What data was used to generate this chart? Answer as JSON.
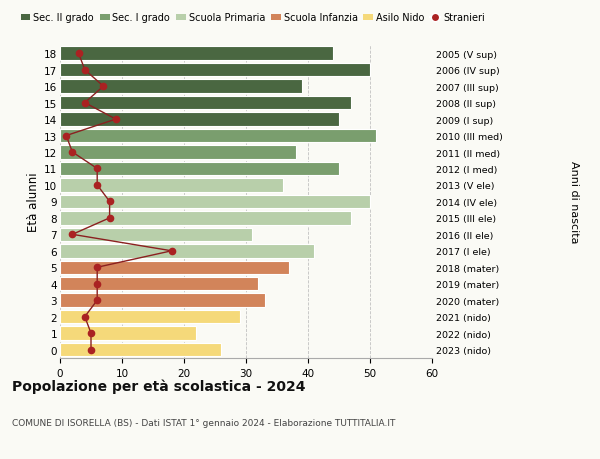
{
  "ages": [
    18,
    17,
    16,
    15,
    14,
    13,
    12,
    11,
    10,
    9,
    8,
    7,
    6,
    5,
    4,
    3,
    2,
    1,
    0
  ],
  "bar_values": [
    44,
    50,
    39,
    47,
    45,
    51,
    38,
    45,
    36,
    50,
    47,
    31,
    41,
    37,
    32,
    33,
    29,
    22,
    26
  ],
  "bar_colors": [
    "#4a6741",
    "#4a6741",
    "#4a6741",
    "#4a6741",
    "#4a6741",
    "#7a9e6e",
    "#7a9e6e",
    "#7a9e6e",
    "#b8cfaa",
    "#b8cfaa",
    "#b8cfaa",
    "#b8cfaa",
    "#b8cfaa",
    "#d2845a",
    "#d2845a",
    "#d2845a",
    "#f5d97a",
    "#f5d97a",
    "#f5d97a"
  ],
  "stranieri_values": [
    3,
    4,
    7,
    4,
    9,
    1,
    2,
    6,
    6,
    8,
    8,
    2,
    18,
    6,
    6,
    6,
    4,
    5,
    5
  ],
  "right_labels": [
    "2005 (V sup)",
    "2006 (IV sup)",
    "2007 (III sup)",
    "2008 (II sup)",
    "2009 (I sup)",
    "2010 (III med)",
    "2011 (II med)",
    "2012 (I med)",
    "2013 (V ele)",
    "2014 (IV ele)",
    "2015 (III ele)",
    "2016 (II ele)",
    "2017 (I ele)",
    "2018 (mater)",
    "2019 (mater)",
    "2020 (mater)",
    "2021 (nido)",
    "2022 (nido)",
    "2023 (nido)"
  ],
  "legend_labels": [
    "Sec. II grado",
    "Sec. I grado",
    "Scuola Primaria",
    "Scuola Infanzia",
    "Asilo Nido",
    "Stranieri"
  ],
  "legend_colors": [
    "#4a6741",
    "#7a9e6e",
    "#b8cfaa",
    "#d2845a",
    "#f5d97a",
    "#aa2222"
  ],
  "title": "Popolazione per età scolastica - 2024",
  "subtitle": "COMUNE DI ISORELLA (BS) - Dati ISTAT 1° gennaio 2024 - Elaborazione TUTTITALIA.IT",
  "ylabel": "Età alunni",
  "right_ylabel": "Anni di nascita",
  "xlim": [
    0,
    60
  ],
  "xticks": [
    0,
    10,
    20,
    30,
    40,
    50,
    60
  ],
  "stranieri_color": "#aa2222",
  "stranieri_line_color": "#8b2020",
  "background_color": "#fafaf5"
}
